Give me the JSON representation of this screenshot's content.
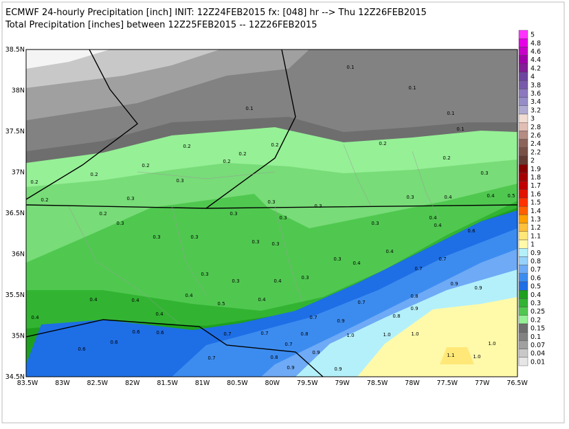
{
  "header": {
    "title": "ECMWF 24-hourly Precipitation [inch] INIT: 12Z24FEB2015 fx: [048] hr --> Thu 12Z26FEB2015",
    "subtitle": "Total Precipitation [inches] between 12Z25FEB2015 -- 12Z26FEB2015"
  },
  "map": {
    "lat_labels": [
      "38.5N",
      "38N",
      "37.5N",
      "37N",
      "36.5N",
      "36N",
      "35.5N",
      "35N",
      "34.5N"
    ],
    "lon_labels": [
      "83.5W",
      "83W",
      "82.5W",
      "82W",
      "81.5W",
      "81W",
      "80.5W",
      "80W",
      "79.5W",
      "79W",
      "78.5W",
      "78W",
      "77.5W",
      "77W",
      "76.5W"
    ],
    "contour_labels": [
      "0.1",
      "0.1",
      "0.1",
      "0.1",
      "0.1",
      "0.2",
      "0.2",
      "0.2",
      "0.2",
      "0.2",
      "0.2",
      "0.2",
      "0.2",
      "0.2",
      "0.2",
      "0.2",
      "0.3",
      "0.3",
      "0.3",
      "0.3",
      "0.3",
      "0.3",
      "0.3",
      "0.3",
      "0.3",
      "0.3",
      "0.3",
      "0.3",
      "0.3",
      "0.3",
      "0.3",
      "0.3",
      "0.3",
      "0.3",
      "0.4",
      "0.4",
      "0.4",
      "0.4",
      "0.4",
      "0.4",
      "0.4",
      "0.4",
      "0.4",
      "0.4",
      "0.4",
      "0.4",
      "0.4",
      "0.5",
      "0.5",
      "0.6",
      "0.6",
      "0.6",
      "0.6",
      "0.6",
      "0.7",
      "0.7",
      "0.7",
      "0.7",
      "0.7",
      "0.7",
      "0.7",
      "0.7",
      "0.8",
      "0.8",
      "0.8",
      "0.8",
      "0.9",
      "0.9",
      "0.9",
      "0.9",
      "0.9",
      "0.9",
      "0.9",
      "1.0",
      "1.0",
      "1.0",
      "1.0",
      "1.0",
      "1.1"
    ]
  },
  "colorbar": {
    "labels": [
      "5",
      "4.8",
      "4.6",
      "4.4",
      "4.2",
      "4",
      "3.8",
      "3.6",
      "3.4",
      "3.2",
      "3",
      "2.8",
      "2.6",
      "2.4",
      "2.2",
      "2",
      "1.9",
      "1.8",
      "1.7",
      "1.6",
      "1.5",
      "1.4",
      "1.3",
      "1.2",
      "1.1",
      "1",
      "0.9",
      "0.8",
      "0.7",
      "0.6",
      "0.5",
      "0.4",
      "0.3",
      "0.25",
      "0.2",
      "0.15",
      "0.1",
      "0.07",
      "0.04",
      "0.01"
    ],
    "colors": [
      "#ff32ff",
      "#e600e6",
      "#c800c8",
      "#a000aa",
      "#821e96",
      "#6e46a0",
      "#785aaa",
      "#8c78be",
      "#968cc8",
      "#afaad2",
      "#f0dcd2",
      "#e1beb4",
      "#b48c82",
      "#8c645a",
      "#785046",
      "#643b32",
      "#870000",
      "#a50000",
      "#c00000",
      "#e11400",
      "#ff3200",
      "#ff6000",
      "#ffa000",
      "#ffc03c",
      "#ffe878",
      "#fffaaa",
      "#b4f0fa",
      "#96d2fa",
      "#6eaaf5",
      "#3c8cf0",
      "#1e6ee6",
      "#1ea01e",
      "#32b432",
      "#50c850",
      "#96f096",
      "#6e6e6e",
      "#828282",
      "#a0a0a0",
      "#c8c8c8",
      "#e6e6e6"
    ]
  }
}
